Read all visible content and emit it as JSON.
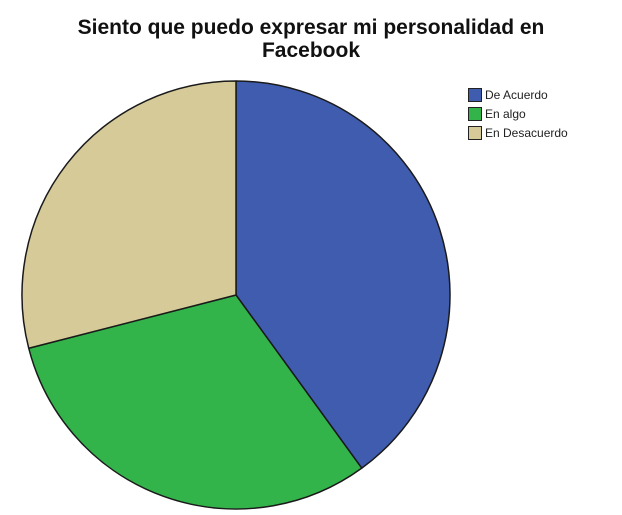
{
  "chart_data": {
    "type": "pie",
    "title_lines": [
      "Siento que puedo expresar mi personalidad en",
      "Facebook"
    ],
    "categories": [
      "De Acuerdo",
      "En algo",
      "En Desacuerdo"
    ],
    "values": [
      40,
      31,
      29
    ],
    "colors": [
      "#3f5cae",
      "#33b44b",
      "#d6cb98"
    ],
    "start_angle_deg": 0,
    "direction": "clockwise",
    "legend_position": "top-right"
  }
}
